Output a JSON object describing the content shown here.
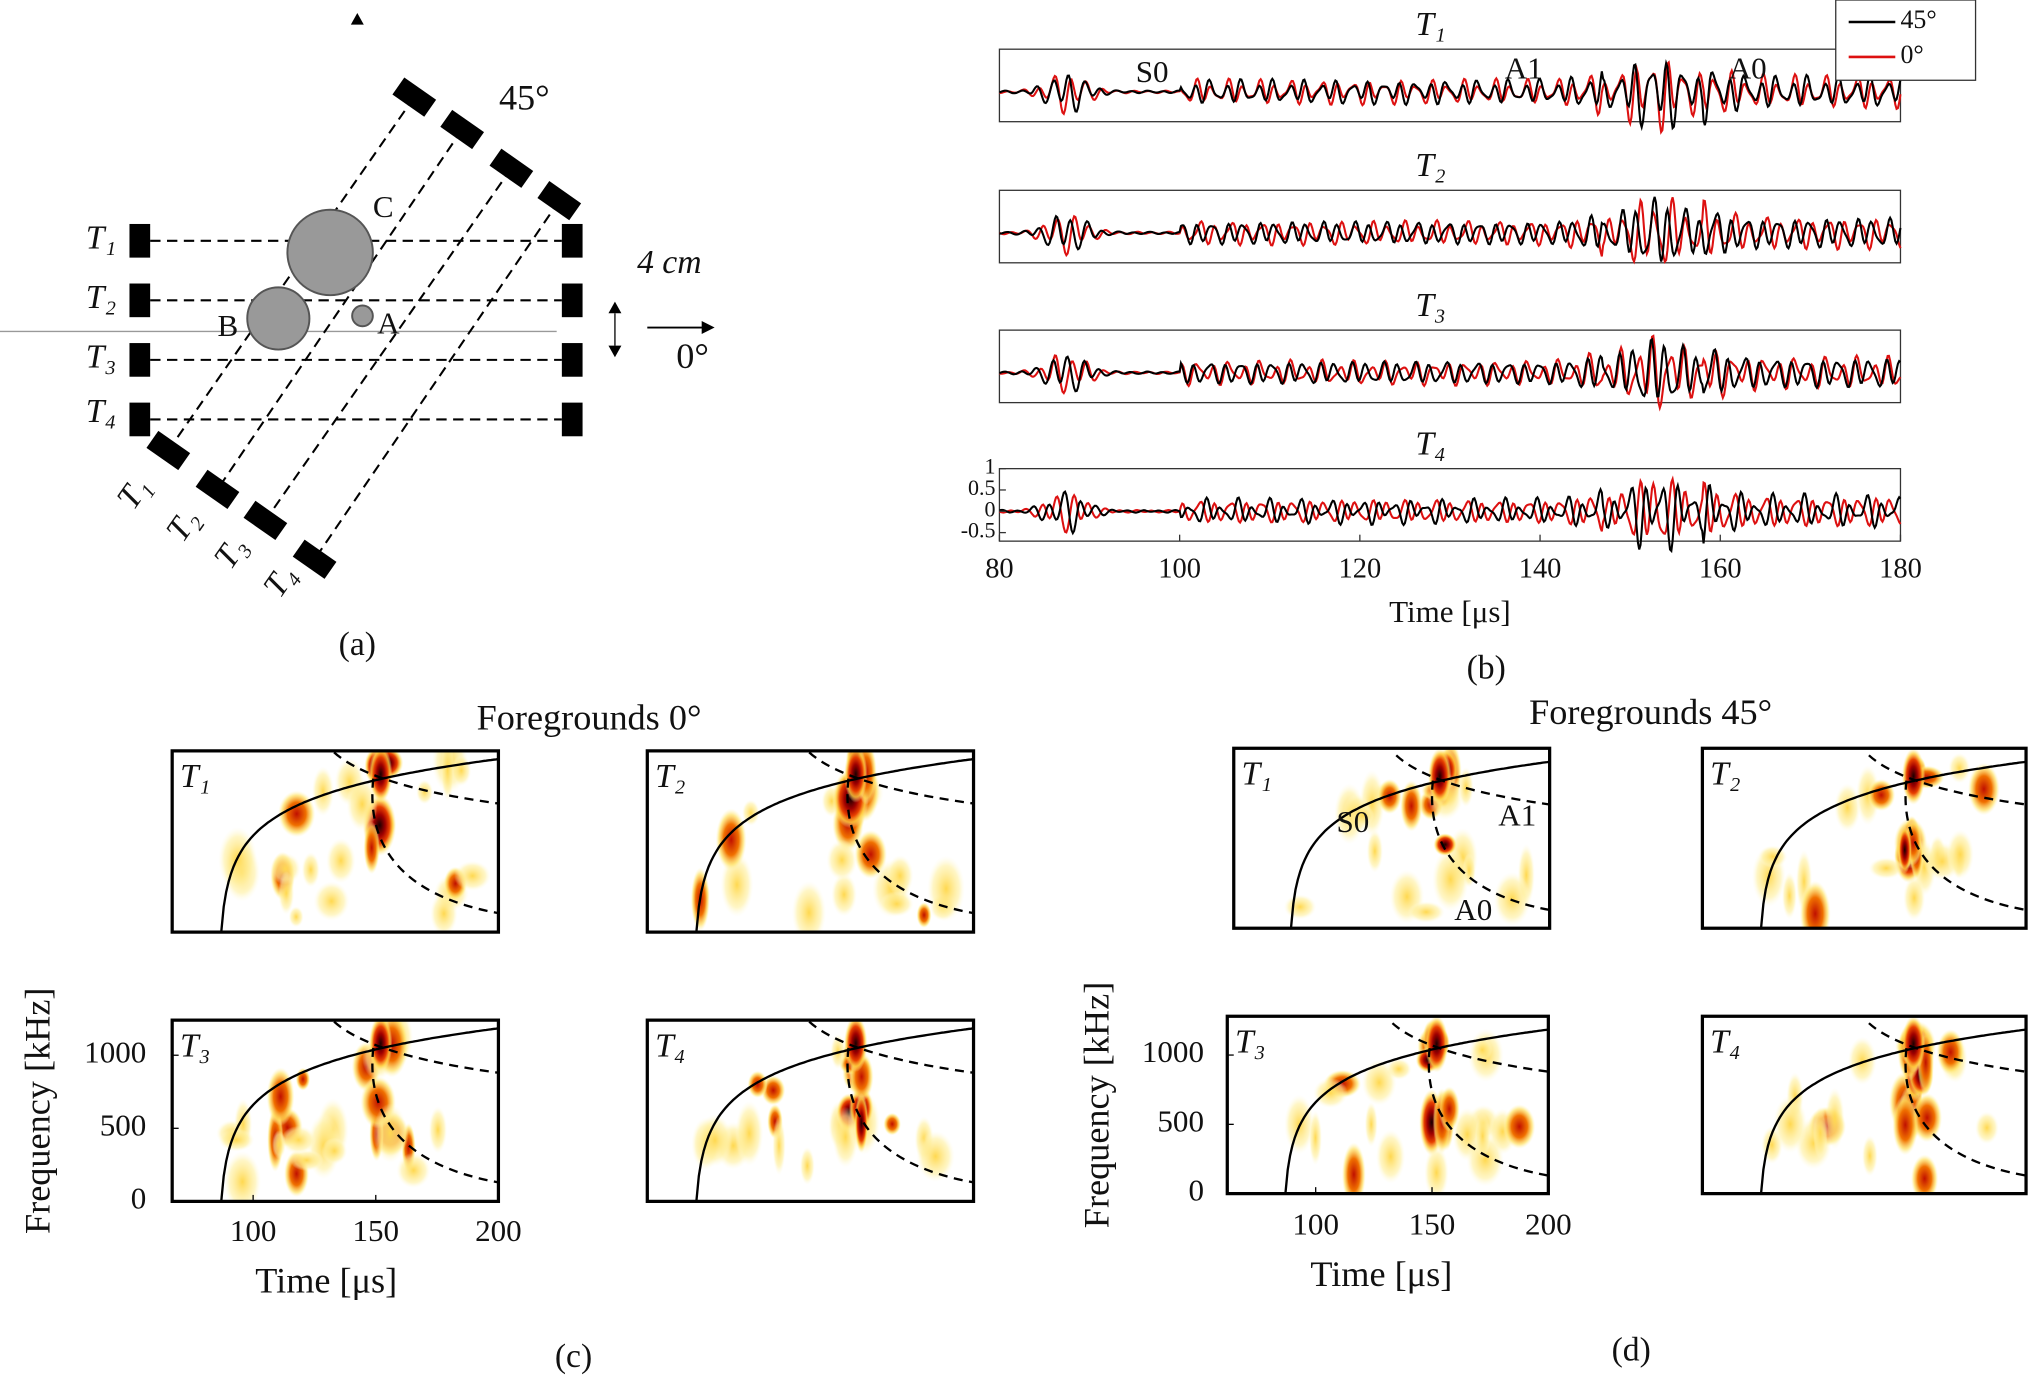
{
  "panel_a": {
    "label": "(a)",
    "angle_45": "45°",
    "angle_0": "0°",
    "distance": "4 cm",
    "defects": [
      "A",
      "B",
      "C"
    ],
    "transducers": [
      "T₁",
      "T₂",
      "T₃",
      "T₄"
    ]
  },
  "panel_b": {
    "label": "(b)",
    "titles": [
      "T₁",
      "T₂",
      "T₃",
      "T₄"
    ],
    "legend": [
      {
        "name": "45°",
        "color": "#000000"
      },
      {
        "name": "0°",
        "color": "#dd1111"
      }
    ],
    "modes": [
      "S0",
      "A1",
      "A0"
    ],
    "xlabel": "Time [μs]",
    "xlim": [
      80,
      180
    ],
    "xticks": [
      80,
      100,
      120,
      140,
      160,
      180
    ],
    "ylim": [
      -0.7,
      1
    ],
    "yticks": [
      1,
      0.5,
      0,
      -0.5
    ]
  },
  "panel_c": {
    "title": "Foregrounds 0°",
    "label": "(c)",
    "plots": [
      "T₁",
      "T₂",
      "T₃",
      "T₄"
    ],
    "xlabel": "Time [μs]",
    "ylabel": "Frequency [kHz]",
    "xlim": [
      67,
      200
    ],
    "xticks": [
      100,
      150,
      200
    ],
    "ylim": [
      0,
      1240
    ],
    "yticks": [
      0,
      500,
      1000
    ]
  },
  "panel_d": {
    "title": "Foregrounds 45°",
    "label": "(d)",
    "plots": [
      "T₁",
      "T₂",
      "T₃",
      "T₄"
    ],
    "modes": [
      "S0",
      "A1",
      "A0"
    ],
    "xlabel": "Time [μs]",
    "ylabel": "Frequency [kHz]",
    "xlim": [
      62,
      200
    ],
    "xticks": [
      100,
      150,
      200
    ],
    "ylim": [
      0,
      1280
    ],
    "yticks": [
      0,
      500,
      1000
    ]
  }
}
